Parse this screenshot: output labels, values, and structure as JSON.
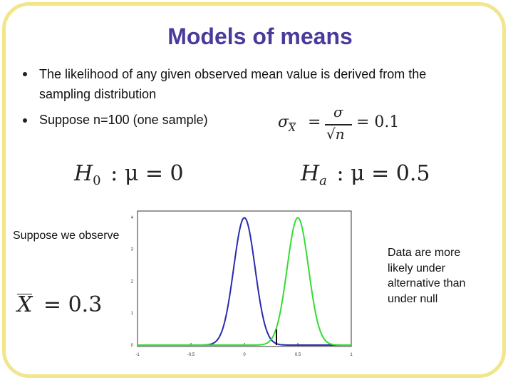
{
  "slide": {
    "title": "Models of means",
    "bullets": [
      "The likelihood of any given observed mean value is derived from the",
      "sampling distribution",
      "Suppose n=100 (one sample)"
    ],
    "formula_se": {
      "sigma": "σ",
      "xbar": "X",
      "equals": "=",
      "num": "σ",
      "den": "√n",
      "value": "= 0.1"
    },
    "h0": {
      "h": "H",
      "sub": "0",
      "rest": ": μ = 0"
    },
    "ha": {
      "h": "H",
      "sub": "a",
      "rest": ": μ = 0.5"
    },
    "observe_label": "Suppose we observe",
    "observed_formula": {
      "xbar": "X",
      "rest": "= 0.3"
    },
    "note_lines": [
      "Data are more",
      "likely under",
      "alternative than",
      "under null"
    ]
  },
  "chart_data": {
    "type": "line",
    "x_ticks": [
      "-1",
      "-0.5",
      "0",
      "0.5",
      "1"
    ],
    "y_ticks": [
      "0",
      "1",
      "2",
      "3",
      "4"
    ],
    "xlim": [
      -1,
      1
    ],
    "ylim": [
      0,
      4.2
    ],
    "grid": false,
    "series": [
      {
        "mean": 0.0,
        "sd": 0.1,
        "color": "#2a2ab0"
      },
      {
        "mean": 0.5,
        "sd": 0.1,
        "color": "#33dd33"
      }
    ],
    "observed_marker": {
      "x": 0.3,
      "color": "#111111"
    }
  }
}
